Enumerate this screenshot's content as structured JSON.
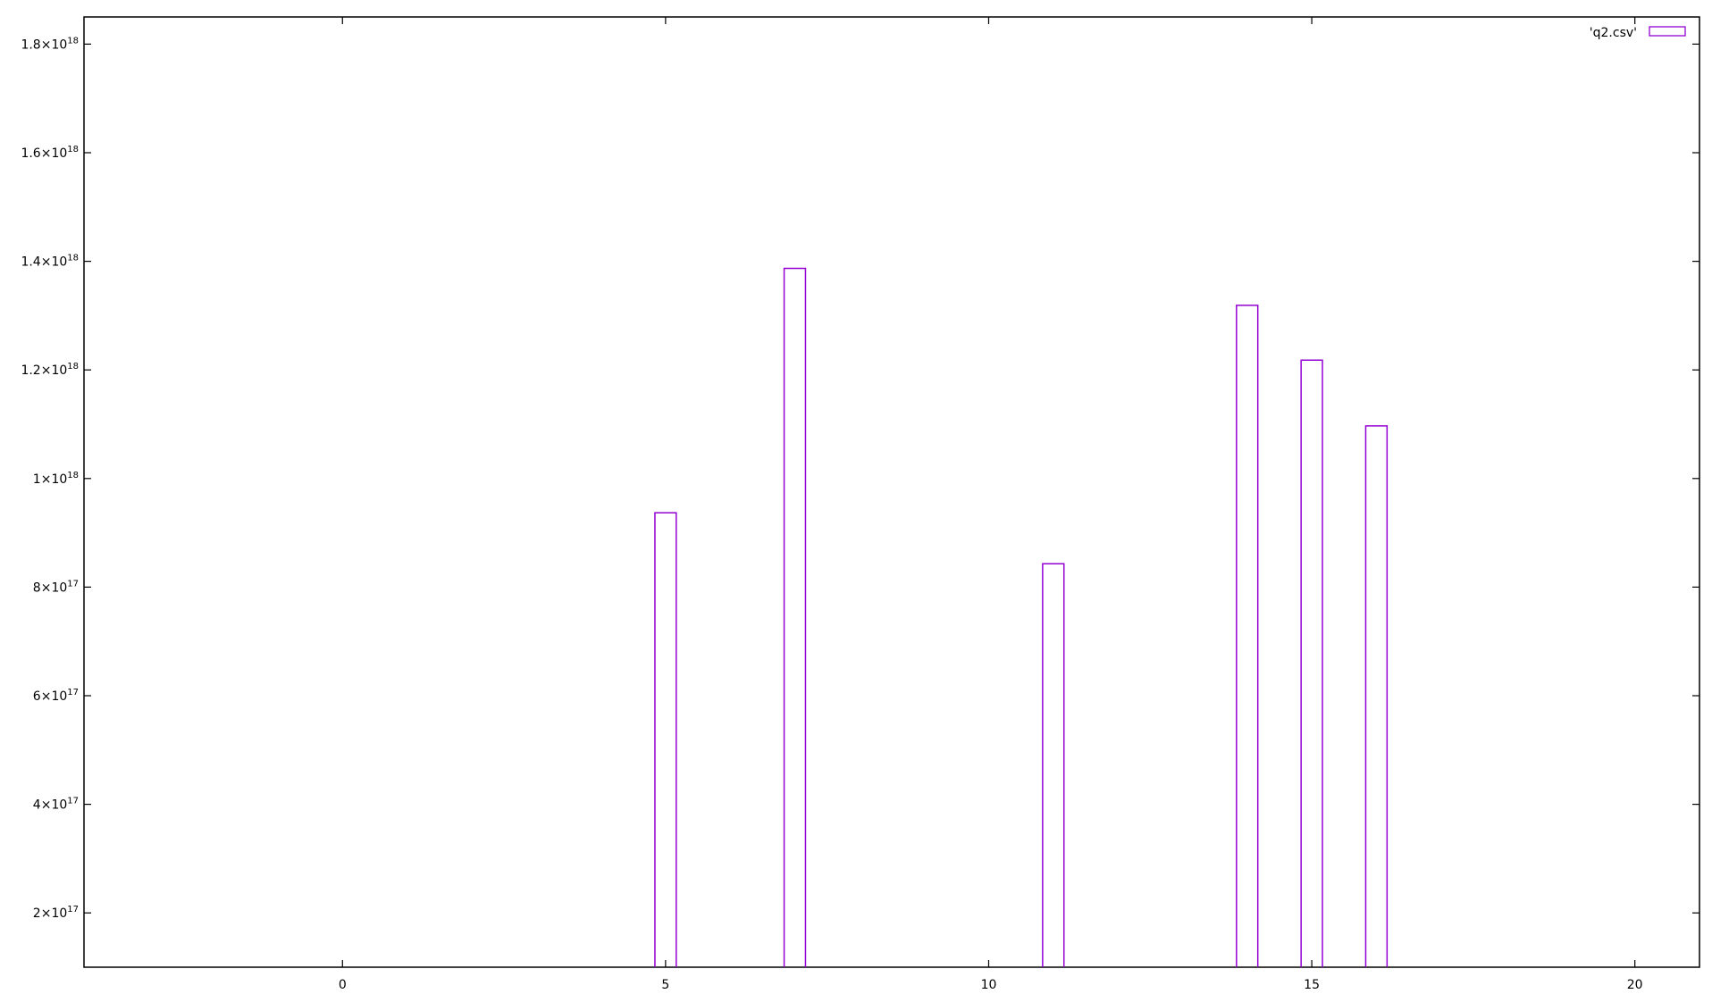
{
  "chart_data": {
    "type": "bar",
    "title": "",
    "xlabel": "",
    "ylabel": "",
    "xlim": [
      -4,
      21
    ],
    "ylim": [
      1e+17,
      1.85e+18
    ],
    "x_ticks": [
      {
        "value": 0,
        "label": "0"
      },
      {
        "value": 5,
        "label": "5"
      },
      {
        "value": 10,
        "label": "10"
      },
      {
        "value": 15,
        "label": "15"
      },
      {
        "value": 20,
        "label": "20"
      }
    ],
    "y_ticks": [
      {
        "value": 2e+17,
        "mantissa": "2",
        "exponent": "17"
      },
      {
        "value": 4e+17,
        "mantissa": "4",
        "exponent": "17"
      },
      {
        "value": 6e+17,
        "mantissa": "6",
        "exponent": "17"
      },
      {
        "value": 8e+17,
        "mantissa": "8",
        "exponent": "17"
      },
      {
        "value": 1e+18,
        "mantissa": "1",
        "exponent": "18"
      },
      {
        "value": 1.2e+18,
        "mantissa": "1.2",
        "exponent": "18"
      },
      {
        "value": 1.4e+18,
        "mantissa": "1.4",
        "exponent": "18"
      },
      {
        "value": 1.6e+18,
        "mantissa": "1.6",
        "exponent": "18"
      },
      {
        "value": 1.8e+18,
        "mantissa": "1.8",
        "exponent": "18"
      }
    ],
    "bar_width": 0.33,
    "grid": false,
    "legend_position": "top-right",
    "series": [
      {
        "name": "'q2.csv'",
        "color": "#9400d3",
        "x": [
          5,
          7,
          11,
          14,
          15,
          16
        ],
        "values": [
          9.37e+17,
          1.387e+18,
          8.43e+17,
          1.319e+18,
          1.218e+18,
          1.097e+18
        ]
      }
    ]
  }
}
